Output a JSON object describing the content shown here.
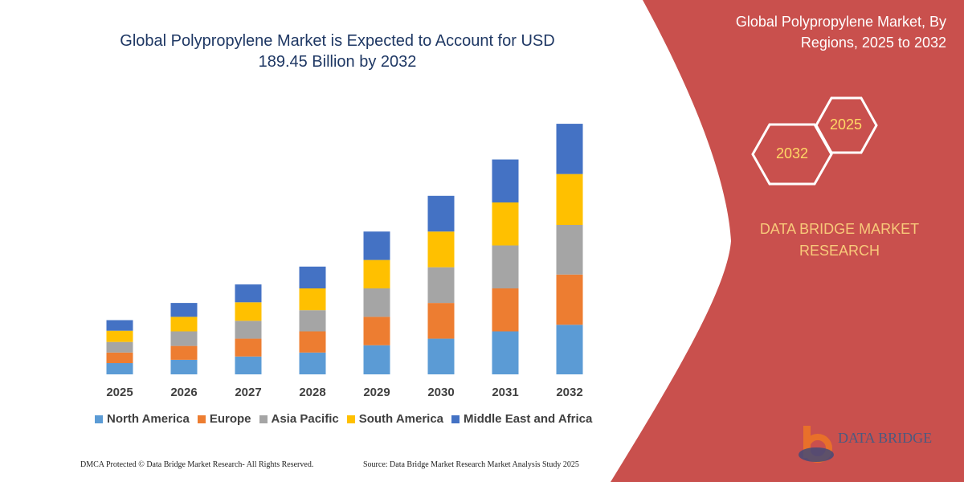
{
  "chart_data": {
    "type": "bar",
    "stacked": true,
    "title": "Global Polypropylene Market is Expected to Account for USD 189.45 Billion by 2032",
    "categories": [
      "2025",
      "2026",
      "2027",
      "2028",
      "2029",
      "2030",
      "2031",
      "2032"
    ],
    "series": [
      {
        "name": "North America",
        "color": "#5b9bd5",
        "values": [
          8.5,
          11,
          13.5,
          16.5,
          22,
          27,
          32.5,
          37.5
        ]
      },
      {
        "name": "Europe",
        "color": "#ed7d31",
        "values": [
          8,
          10.5,
          13.5,
          16,
          21.5,
          27,
          32.5,
          38
        ]
      },
      {
        "name": "Asia Pacific",
        "color": "#a5a5a5",
        "values": [
          8,
          11,
          13.5,
          16,
          21.5,
          27,
          32.5,
          37.5
        ]
      },
      {
        "name": "South America",
        "color": "#ffc000",
        "values": [
          8.5,
          11,
          14,
          16.5,
          21.5,
          27,
          32.5,
          38.5
        ]
      },
      {
        "name": "Middle East and Africa",
        "color": "#4472c4",
        "values": [
          8,
          10.5,
          13.5,
          16.5,
          21.5,
          27,
          32.5,
          38
        ]
      }
    ]
  },
  "side_title": "Global Polypropylene Market, By Regions, 2025 to 2032",
  "hexagons": [
    "2032",
    "2025"
  ],
  "brand": "DATA BRIDGE MARKET RESEARCH",
  "logo": "DATA BRIDGE",
  "footer": {
    "left": "DMCA Protected © Data Bridge Market Research-  All Rights Reserved.",
    "right": "Source: Data Bridge Market Research  Market Analysis Study 2025"
  }
}
